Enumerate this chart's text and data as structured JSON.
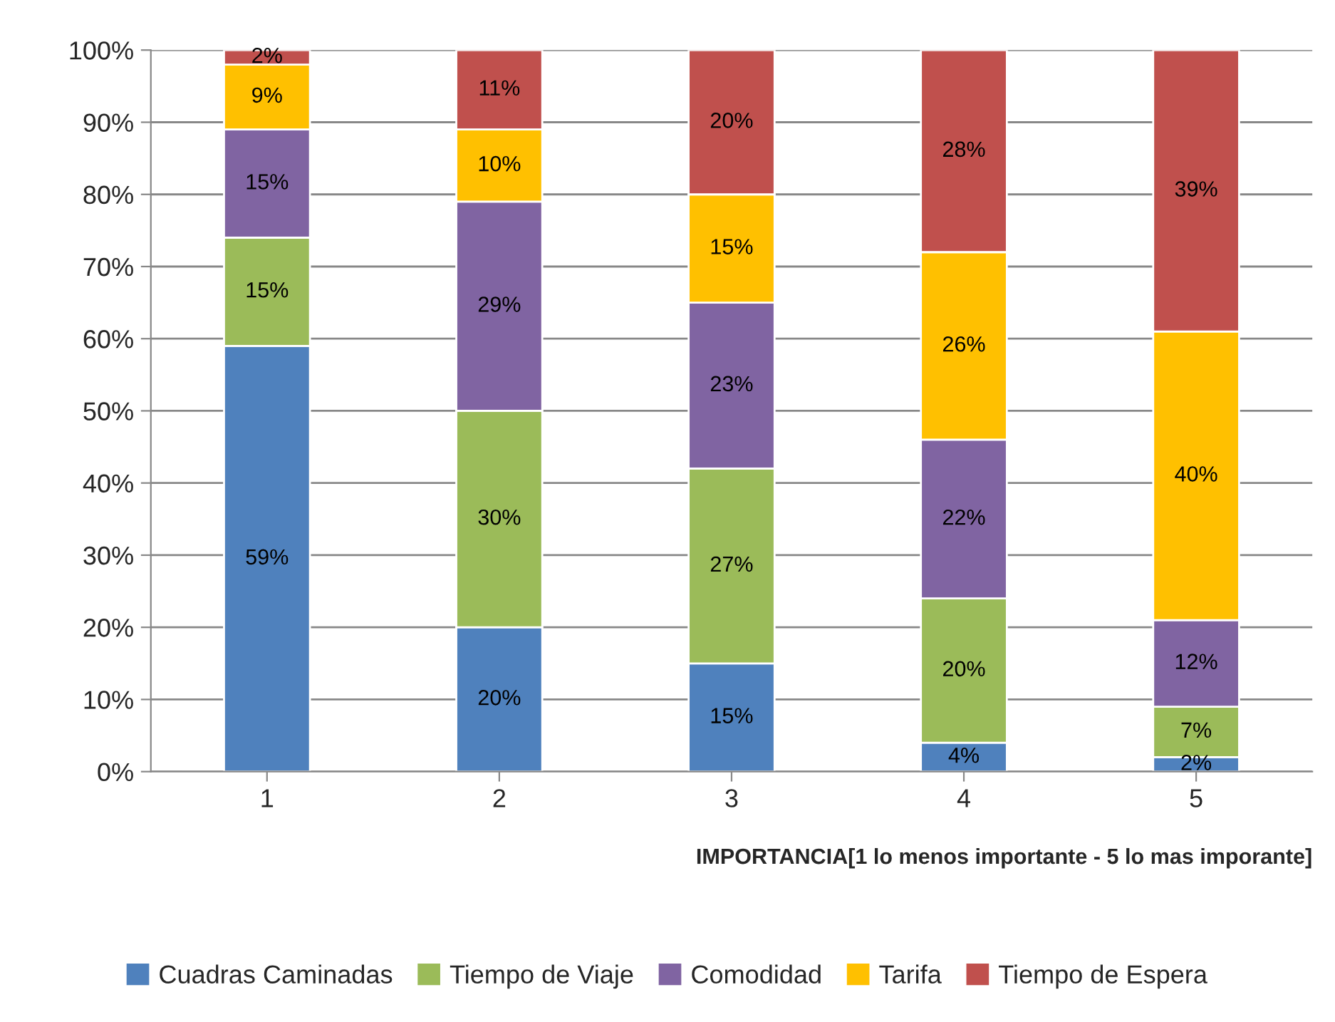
{
  "chart_data": {
    "type": "bar",
    "stacked": true,
    "grid": "y",
    "legend": "bottom",
    "xlabel": "IMPORTANCIA[1 lo menos importante - 5 lo mas imporante]",
    "categories": [
      "1",
      "2",
      "3",
      "4",
      "5"
    ],
    "series": [
      {
        "name": "Cuadras Caminadas",
        "color": "#4f81bd",
        "values": [
          59,
          20,
          15,
          4,
          2
        ],
        "value_labels": [
          "59%",
          "20%",
          "15%",
          "4%",
          "2%"
        ]
      },
      {
        "name": "Tiempo de Viaje",
        "color": "#9bbb59",
        "values": [
          15,
          30,
          27,
          20,
          7
        ],
        "value_labels": [
          "15%",
          "30%",
          "27%",
          "20%",
          "7%"
        ]
      },
      {
        "name": "Comodidad",
        "color": "#8064a2",
        "values": [
          15,
          29,
          23,
          22,
          12
        ],
        "value_labels": [
          "15%",
          "29%",
          "23%",
          "22%",
          "12%"
        ]
      },
      {
        "name": "Tarifa",
        "color": "#ffc000",
        "values": [
          9,
          10,
          15,
          26,
          40
        ],
        "value_labels": [
          "9%",
          "10%",
          "15%",
          "26%",
          "40%"
        ]
      },
      {
        "name": "Tiempo de Espera",
        "color": "#c0504d",
        "values": [
          2,
          11,
          20,
          28,
          39
        ],
        "value_labels": [
          "2%",
          "11%",
          "20%",
          "28%",
          "39%"
        ]
      }
    ],
    "ylim": [
      0,
      100
    ],
    "yticks": [
      {
        "value": 0,
        "label": "0%"
      },
      {
        "value": 10,
        "label": "10%"
      },
      {
        "value": 20,
        "label": "20%"
      },
      {
        "value": 30,
        "label": "30%"
      },
      {
        "value": 40,
        "label": "40%"
      },
      {
        "value": 50,
        "label": "50%"
      },
      {
        "value": 60,
        "label": "60%"
      },
      {
        "value": 70,
        "label": "70%"
      },
      {
        "value": 80,
        "label": "80%"
      },
      {
        "value": 90,
        "label": "90%"
      },
      {
        "value": 100,
        "label": "100%"
      }
    ]
  }
}
